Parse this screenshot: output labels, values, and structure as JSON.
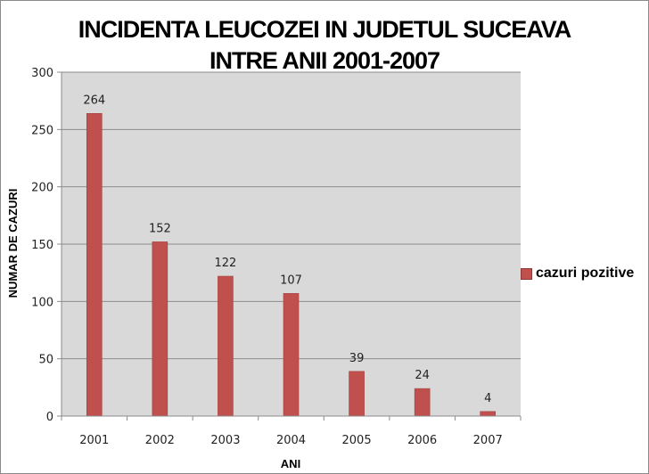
{
  "chart_data": {
    "type": "bar",
    "title_line1": "INCIDENTA LEUCOZEI IN JUDETUL SUCEAVA",
    "title_line2": "INTRE ANII 2001-2007",
    "xlabel": "ANI",
    "ylabel": "NUMAR DE CAZURI",
    "categories": [
      "2001",
      "2002",
      "2003",
      "2004",
      "2005",
      "2006",
      "2007"
    ],
    "series": [
      {
        "name": "cazuri pozitive",
        "values": [
          264,
          152,
          122,
          107,
          39,
          24,
          4
        ],
        "color": "#c0504d"
      }
    ],
    "ylim": [
      0,
      300
    ],
    "yticks": [
      0,
      50,
      100,
      150,
      200,
      250,
      300
    ],
    "grid": true,
    "legend_position": "right",
    "plot_background": "#d9d9d9"
  }
}
